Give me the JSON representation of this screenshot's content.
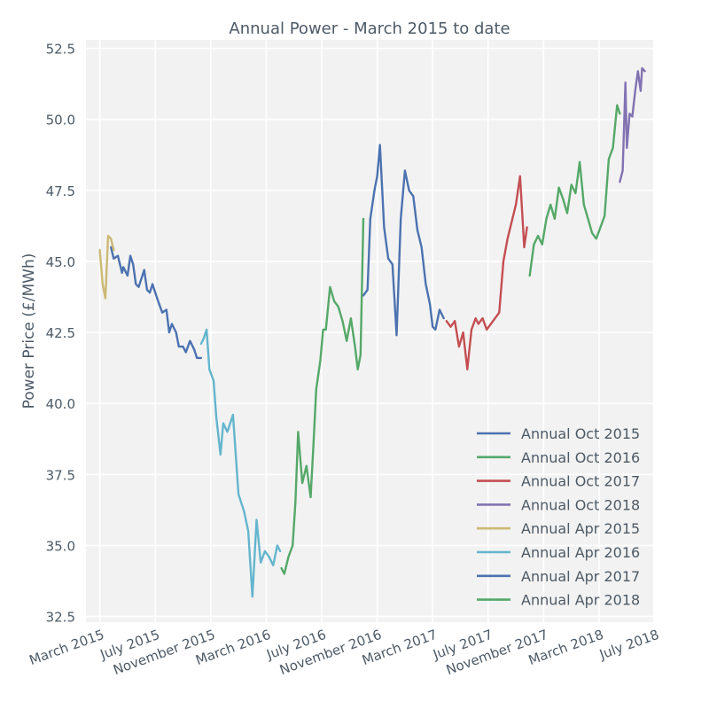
{
  "chart_data": {
    "type": "line",
    "title": "Annual Power - March 2015 to date",
    "xlabel": "",
    "ylabel": "Power Price (£/MWh)",
    "ylim": [
      32.3,
      52.8
    ],
    "xlim": [
      -1.0,
      39.9
    ],
    "grid": true,
    "legend_position": "bottom-right",
    "x_ticks": [
      {
        "label": "March 2015",
        "value": 0
      },
      {
        "label": "July 2015",
        "value": 4
      },
      {
        "label": "November 2015",
        "value": 8
      },
      {
        "label": "March 2016",
        "value": 12
      },
      {
        "label": "July 2016",
        "value": 16
      },
      {
        "label": "November 2016",
        "value": 20
      },
      {
        "label": "March 2017",
        "value": 24
      },
      {
        "label": "July 2017",
        "value": 28
      },
      {
        "label": "November 2017",
        "value": 32
      },
      {
        "label": "March 2018",
        "value": 36
      },
      {
        "label": "July 2018",
        "value": 40
      }
    ],
    "y_ticks": [
      {
        "label": "32.5",
        "value": 32.5
      },
      {
        "label": "35.0",
        "value": 35.0
      },
      {
        "label": "37.5",
        "value": 37.5
      },
      {
        "label": "40.0",
        "value": 40.0
      },
      {
        "label": "42.5",
        "value": 42.5
      },
      {
        "label": "45.0",
        "value": 45.0
      },
      {
        "label": "47.5",
        "value": 47.5
      },
      {
        "label": "50.0",
        "value": 50.0
      },
      {
        "label": "52.5",
        "value": 52.5
      }
    ],
    "series": [
      {
        "name": "Annual Oct 2015",
        "color": "#4c72b0",
        "in_legend": true,
        "x": [
          0.8,
          1.0,
          1.3,
          1.6,
          1.7,
          2.0,
          2.2,
          2.4,
          2.6,
          2.8,
          3.0,
          3.2,
          3.4,
          3.6,
          3.8,
          4.0,
          4.2,
          4.5,
          4.8,
          5.0,
          5.2,
          5.5,
          5.7,
          6.0,
          6.2,
          6.5,
          6.8,
          7.0,
          7.3
        ],
        "y": [
          45.5,
          45.1,
          45.2,
          44.6,
          44.8,
          44.5,
          45.2,
          44.9,
          44.2,
          44.1,
          44.4,
          44.7,
          44.0,
          43.9,
          44.2,
          43.9,
          43.6,
          43.2,
          43.3,
          42.5,
          42.8,
          42.5,
          42.0,
          42.0,
          41.8,
          42.2,
          41.9,
          41.6,
          41.6
        ]
      },
      {
        "name": "Annual Oct 2016",
        "color": "#55a868",
        "in_legend": true,
        "x": [
          13.1,
          13.3,
          13.6,
          13.9,
          14.1,
          14.3,
          14.6,
          14.9,
          15.2,
          15.4,
          15.6,
          15.9,
          16.1,
          16.3,
          16.6,
          16.9,
          17.2,
          17.5,
          17.8,
          18.1,
          18.4,
          18.6,
          18.8,
          19.0
        ],
        "y": [
          34.2,
          34.0,
          34.6,
          35.0,
          36.5,
          39.0,
          37.2,
          37.8,
          36.7,
          38.5,
          40.5,
          41.5,
          42.6,
          42.6,
          44.1,
          43.6,
          43.4,
          42.9,
          42.2,
          43.0,
          42.0,
          41.2,
          41.7,
          46.5
        ]
      },
      {
        "name": "Annual Oct 2017",
        "color": "#c44e52",
        "in_legend": true,
        "x": [
          25.0,
          25.3,
          25.6,
          25.9,
          26.2,
          26.5,
          26.8,
          27.1,
          27.3,
          27.6,
          27.9,
          28.2,
          28.5,
          28.8,
          29.1,
          29.4,
          29.7,
          30.0,
          30.3,
          30.6,
          30.8
        ],
        "y": [
          42.9,
          42.7,
          42.9,
          42.0,
          42.5,
          41.2,
          42.6,
          43.0,
          42.8,
          43.0,
          42.6,
          42.8,
          43.0,
          43.2,
          45.0,
          45.8,
          46.4,
          47.0,
          48.0,
          45.5,
          46.2
        ]
      },
      {
        "name": "Annual Oct 2018",
        "color": "#8172b2",
        "in_legend": true,
        "x": [
          37.5,
          37.7,
          37.9,
          38.0,
          38.2,
          38.4,
          38.6,
          38.8,
          39.0,
          39.1,
          39.3
        ],
        "y": [
          47.8,
          48.2,
          51.3,
          49.0,
          50.2,
          50.1,
          51.0,
          51.7,
          51.0,
          51.8,
          51.7
        ]
      },
      {
        "name": "Annual Apr 2015",
        "color": "#ccb974",
        "in_legend": true,
        "x": [
          0.0,
          0.2,
          0.4,
          0.6,
          0.8,
          1.0
        ],
        "y": [
          45.4,
          44.2,
          43.7,
          45.9,
          45.8,
          45.4
        ]
      },
      {
        "name": "Annual Apr 2016",
        "color": "#64b5cd",
        "in_legend": true,
        "x": [
          7.3,
          7.5,
          7.7,
          7.9,
          8.2,
          8.4,
          8.7,
          8.9,
          9.2,
          9.6,
          10.0,
          10.4,
          10.7,
          11.0,
          11.3,
          11.6,
          11.9,
          12.2,
          12.5,
          12.8,
          13.0
        ],
        "y": [
          42.1,
          42.3,
          42.6,
          41.2,
          40.8,
          39.5,
          38.2,
          39.3,
          39.0,
          39.6,
          36.8,
          36.2,
          35.5,
          33.2,
          35.9,
          34.4,
          34.8,
          34.6,
          34.3,
          35.0,
          34.8
        ]
      },
      {
        "name": "Annual Apr 2017",
        "color": "#4c72b0",
        "in_legend": true,
        "x": [
          19.0,
          19.3,
          19.5,
          19.8,
          20.0,
          20.2,
          20.5,
          20.8,
          21.1,
          21.4,
          21.7,
          22.0,
          22.3,
          22.6,
          22.9,
          23.2,
          23.5,
          23.8,
          24.0,
          24.2,
          24.5,
          24.8
        ],
        "y": [
          43.8,
          44.0,
          46.5,
          47.5,
          48.0,
          49.1,
          46.2,
          45.1,
          44.9,
          42.4,
          46.5,
          48.2,
          47.5,
          47.3,
          46.1,
          45.5,
          44.2,
          43.5,
          42.7,
          42.6,
          43.3,
          43.0
        ]
      },
      {
        "name": "Annual Apr 2018",
        "color": "#55a868",
        "in_legend": true,
        "x": [
          31.0,
          31.3,
          31.6,
          31.9,
          32.2,
          32.5,
          32.8,
          33.1,
          33.4,
          33.7,
          34.0,
          34.3,
          34.6,
          34.9,
          35.2,
          35.5,
          35.8,
          36.1,
          36.4,
          36.7,
          37.0,
          37.3,
          37.5
        ],
        "y": [
          44.5,
          45.6,
          45.9,
          45.6,
          46.5,
          47.0,
          46.5,
          47.6,
          47.2,
          46.7,
          47.7,
          47.4,
          48.5,
          47.0,
          46.5,
          46.0,
          45.8,
          46.2,
          46.6,
          48.6,
          49.0,
          50.5,
          50.2
        ]
      }
    ]
  }
}
